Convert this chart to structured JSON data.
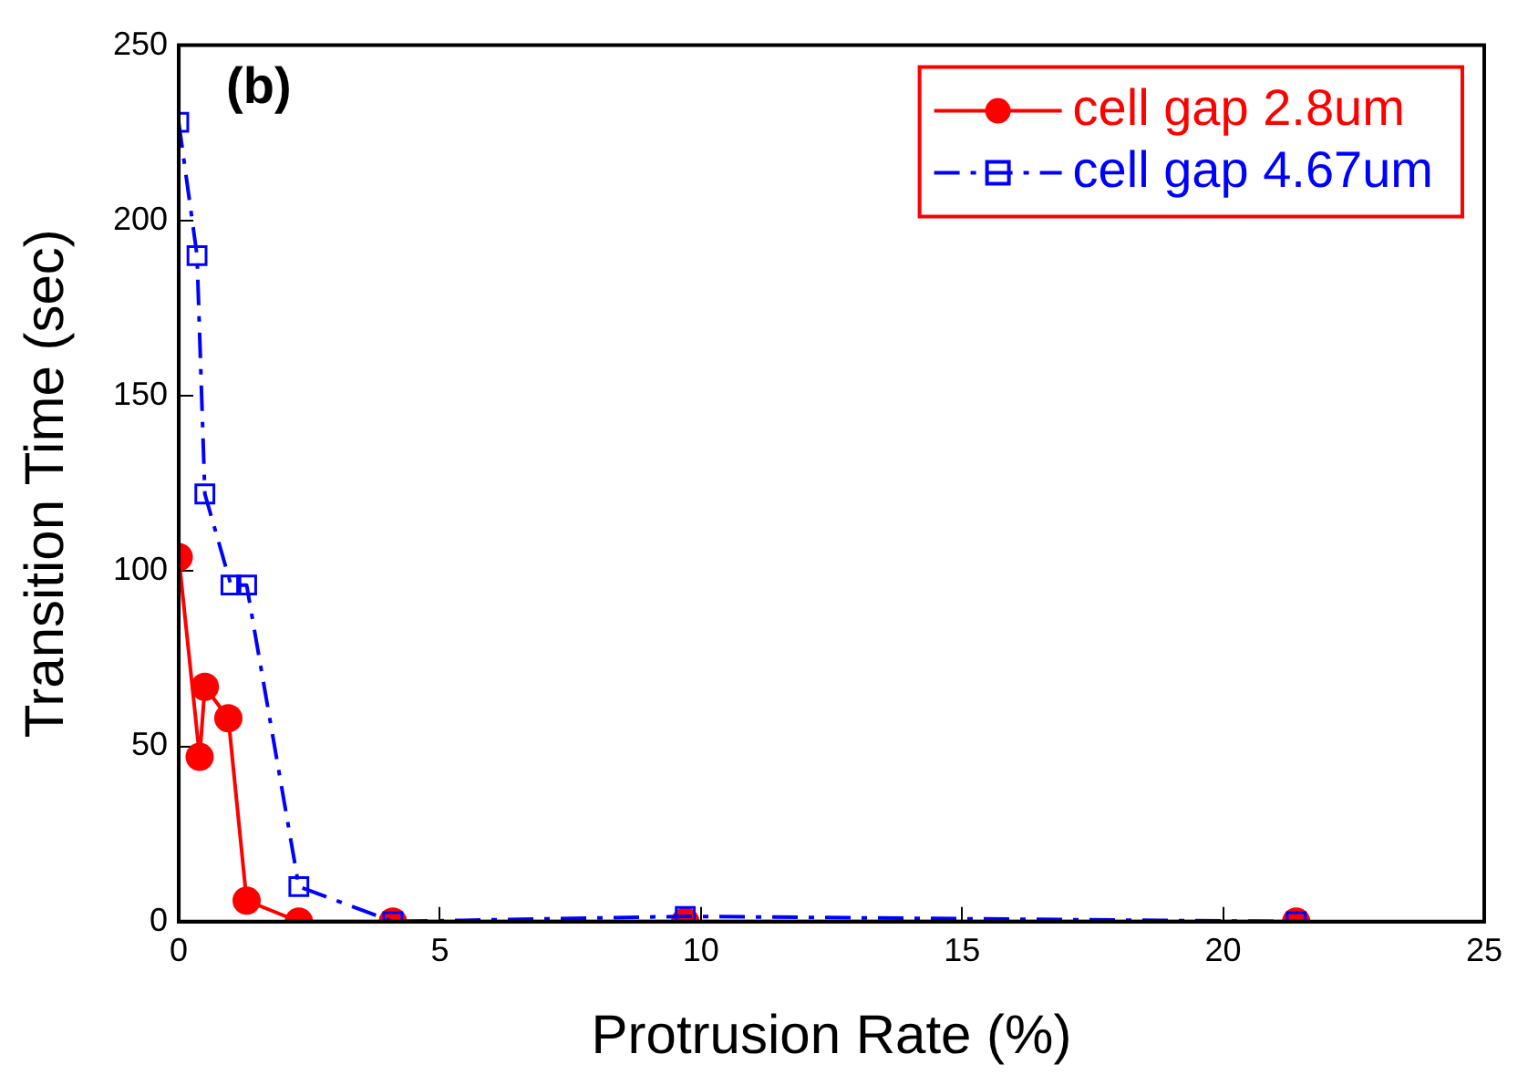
{
  "chart_data": {
    "type": "line",
    "xlabel": "Protrusion Rate (%)",
    "ylabel": "Transition Time (sec)",
    "annotations": [
      "(b)"
    ],
    "xlim": [
      0,
      25
    ],
    "xticks": [
      0,
      5,
      10,
      15,
      20,
      25
    ],
    "ylim": [
      0,
      250
    ],
    "yticks": [
      0,
      50,
      100,
      150,
      200,
      250
    ],
    "grid": false,
    "legend": "top right",
    "series": [
      {
        "name": "cell gap 2.8um",
        "color": "#ff0000",
        "marker": "circle",
        "line_style": "solid",
        "x": [
          0,
          0.4,
          0.5,
          0.95,
          1.3,
          2.3,
          4.1,
          9.7,
          21.4
        ],
        "values": [
          104,
          47,
          67,
          58,
          6,
          0,
          0,
          0,
          0
        ]
      },
      {
        "name": "cell gap 4.67um",
        "color": "#0000ff",
        "marker": "square",
        "line_style": "dashed",
        "x": [
          0,
          0.35,
          0.5,
          1,
          1.3,
          2.3,
          4.1,
          9.7,
          21.4
        ],
        "values": [
          228,
          190,
          122,
          96,
          96,
          10,
          0,
          1.5,
          0
        ]
      }
    ]
  }
}
